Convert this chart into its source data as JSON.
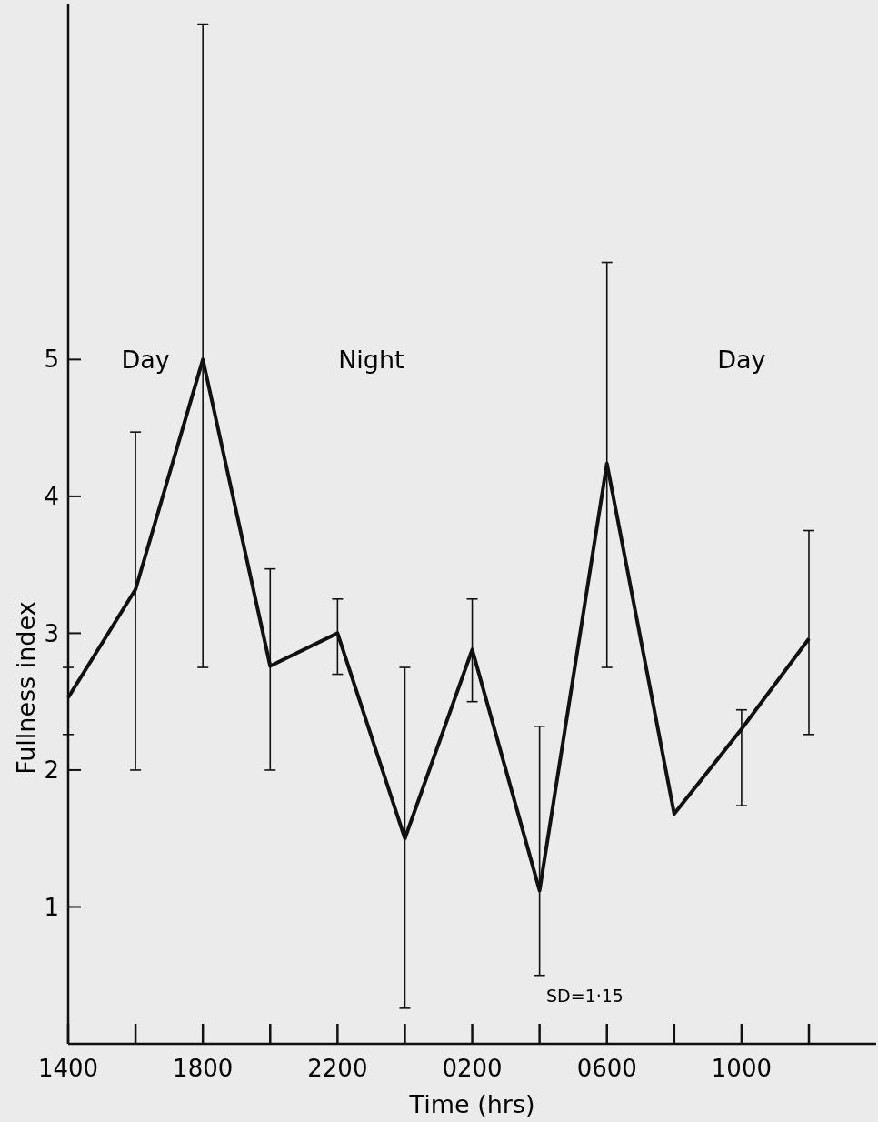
{
  "chart_data": {
    "type": "line",
    "xlabel": "Time (hrs)",
    "ylabel": "Fullness index",
    "categories": [
      "1400",
      null,
      "1800",
      null,
      "2200",
      null,
      "0200",
      null,
      "0600",
      null,
      "1000",
      null
    ],
    "series": [
      {
        "color": "#111111",
        "values": [
          2.53,
          3.32,
          5.0,
          2.76,
          3.0,
          1.5,
          2.88,
          1.12,
          4.24,
          1.68,
          2.3,
          2.96
        ],
        "errors": [
          [
            2.26,
            2.75
          ],
          [
            2.0,
            4.47
          ],
          [
            2.75,
            7.45
          ],
          [
            2.0,
            3.47
          ],
          [
            2.7,
            3.25
          ],
          [
            0.26,
            2.75
          ],
          [
            2.5,
            3.25
          ],
          [
            0.5,
            2.32
          ],
          [
            2.75,
            5.71
          ],
          null,
          [
            1.74,
            2.44
          ],
          [
            2.26,
            3.75
          ]
        ]
      }
    ],
    "annotations": [
      "Day",
      "Night",
      "Day",
      "SD=1·15"
    ],
    "ylim": [
      0,
      7.6
    ],
    "yticks": [
      1,
      2,
      3,
      4,
      5
    ],
    "grid": false,
    "marker": "none",
    "line_style": "solid"
  }
}
